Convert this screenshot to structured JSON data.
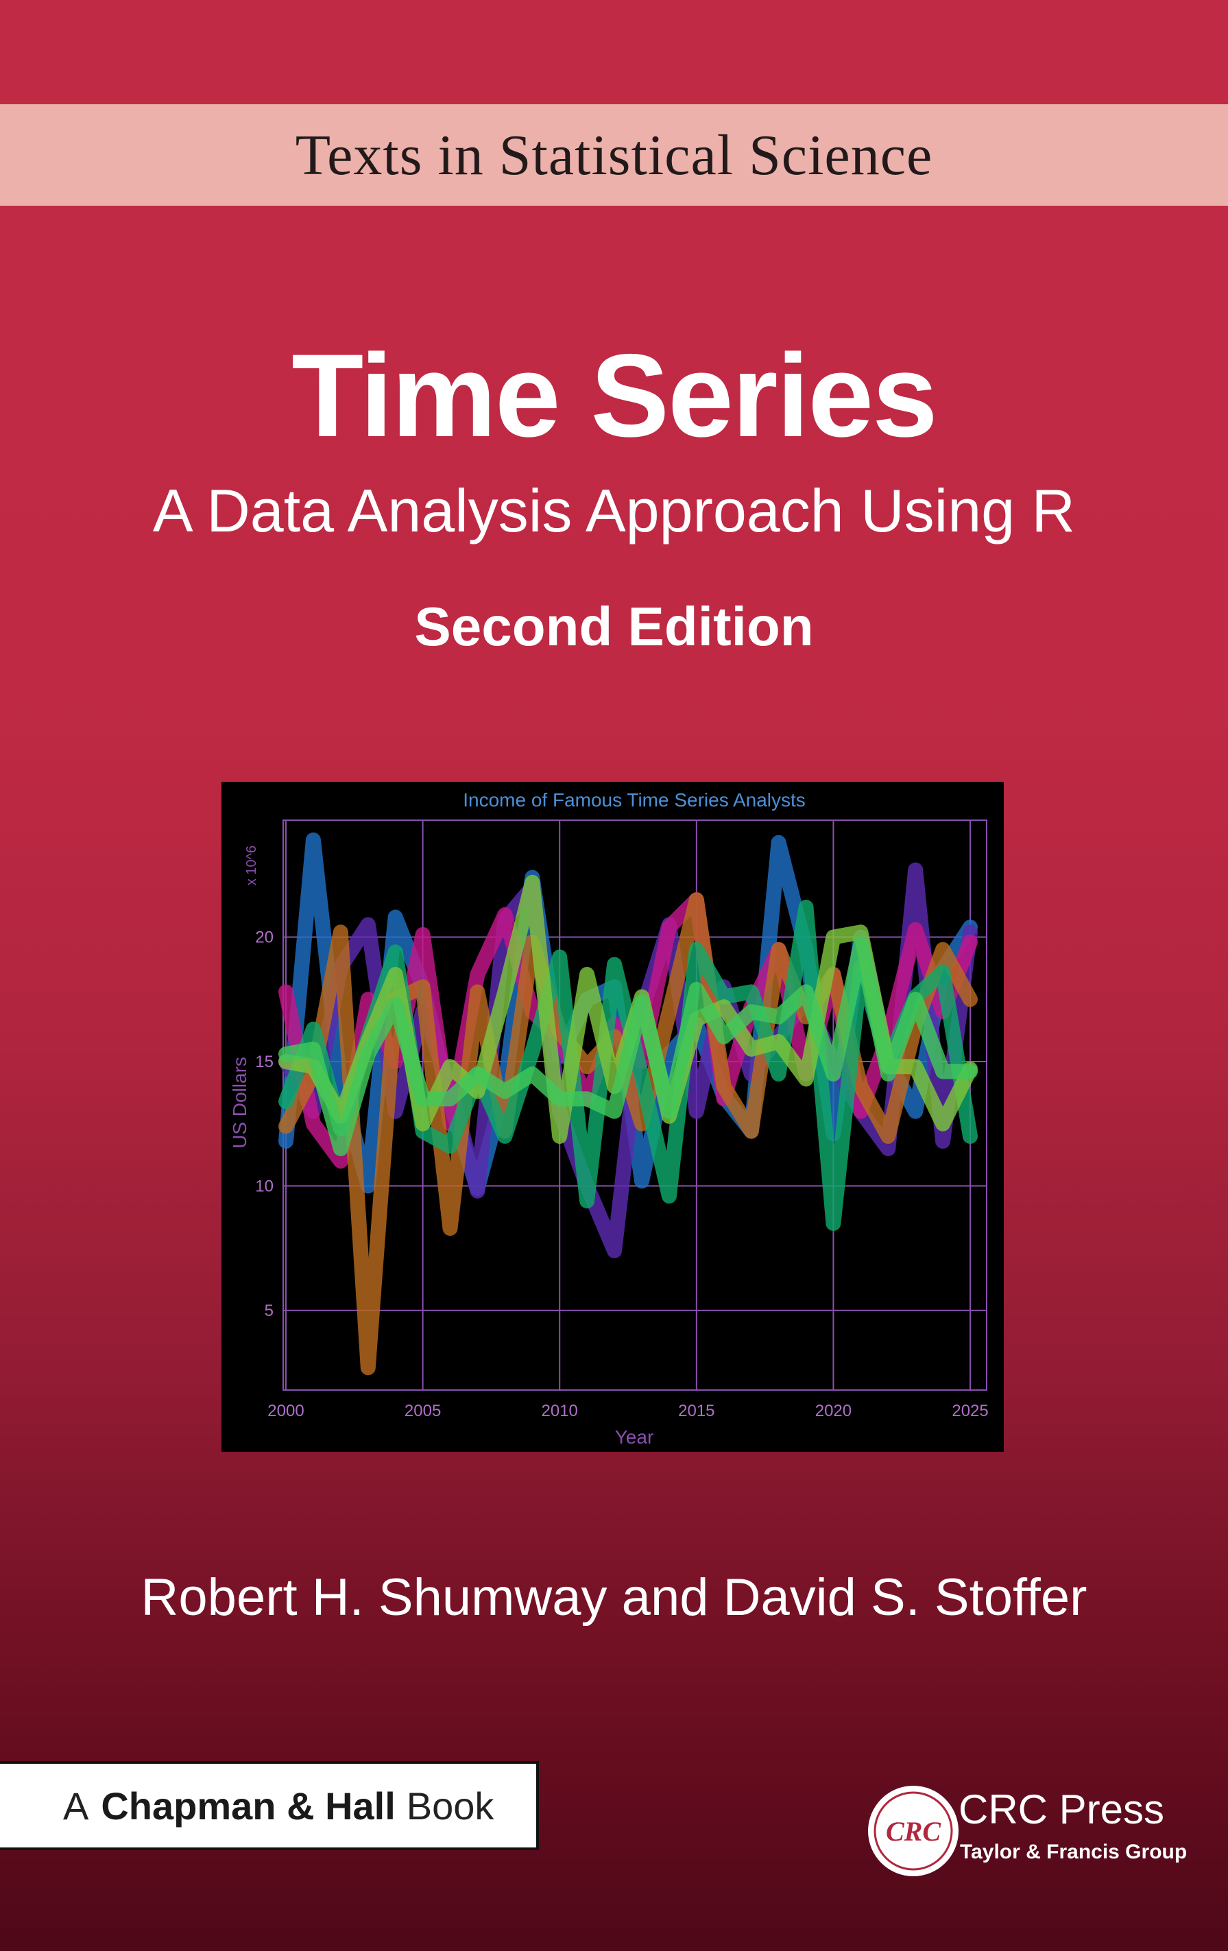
{
  "series_band": {
    "text": "Texts in Statistical Science"
  },
  "book": {
    "title": "Time Series",
    "subtitle": "A Data Analysis Approach Using R",
    "edition": "Second Edition",
    "authors": "Robert H. Shumway and David S. Stoffer"
  },
  "imprint": {
    "a": "A",
    "name": "Chapman & Hall",
    "book": "Book"
  },
  "publisher": {
    "logo_text": "CRC",
    "name": "CRC Press",
    "group": "Taylor & Francis Group"
  },
  "colors": {
    "background": "#bf2943",
    "band": "#ecb1aa",
    "chart_bg": "#000000",
    "chart_grid": "#8a4fb0",
    "chart_text": "#b06fc8",
    "chart_title": "#4a90d9"
  },
  "chart_data": {
    "type": "line",
    "title": "Income of Famous Time Series Analysts",
    "xlabel": "Year",
    "ylabel": "US Dollars",
    "y_multiplier": "x 10^6",
    "xlim": [
      1999.9,
      2025.6
    ],
    "ylim": [
      1.8,
      24.7
    ],
    "xticks": [
      2000,
      2005,
      2010,
      2015,
      2020,
      2025
    ],
    "yticks": [
      5,
      10,
      15,
      20
    ],
    "grid": true,
    "x": [
      2000,
      2001,
      2002,
      2003,
      2004,
      2005,
      2006,
      2007,
      2008,
      2009,
      2010,
      2011,
      2012,
      2013,
      2014,
      2015,
      2016,
      2017,
      2018,
      2019,
      2020,
      2021,
      2022,
      2023,
      2024,
      2025
    ],
    "series": [
      {
        "color": "#1f6fc5",
        "values": [
          11.8,
          23.9,
          14.0,
          10.0,
          20.8,
          18.0,
          13.3,
          9.9,
          14.0,
          22.4,
          15.2,
          17.5,
          18.0,
          10.2,
          15.3,
          16.5,
          13.6,
          12.2,
          23.8,
          19.5,
          12.1,
          20.0,
          15.0,
          13.0,
          18.7,
          20.4
        ]
      },
      {
        "color": "#5b2bb0",
        "values": [
          15.0,
          13.0,
          18.8,
          20.5,
          13.0,
          17.0,
          14.0,
          9.8,
          20.7,
          22.0,
          13.0,
          10.0,
          7.4,
          17.0,
          20.5,
          13.0,
          18.0,
          14.5,
          16.0,
          17.5,
          15.0,
          13.0,
          11.5,
          22.7,
          11.8,
          20.2
        ]
      },
      {
        "color": "#c4168a",
        "values": [
          17.8,
          12.5,
          11.0,
          17.5,
          15.0,
          20.1,
          12.5,
          18.5,
          20.9,
          17.0,
          16.0,
          13.5,
          16.5,
          15.0,
          20.4,
          21.5,
          13.5,
          17.2,
          19.5,
          14.5,
          18.5,
          13.0,
          16.0,
          20.3,
          17.0,
          19.8
        ]
      },
      {
        "color": "#b86a1e",
        "values": [
          12.4,
          14.5,
          20.2,
          2.7,
          17.5,
          18.0,
          8.3,
          17.8,
          12.2,
          19.8,
          16.2,
          14.8,
          16.0,
          12.5,
          17.0,
          21.5,
          14.0,
          12.2,
          19.5,
          16.8,
          18.5,
          14.0,
          12.0,
          16.5,
          19.5,
          17.5
        ]
      },
      {
        "color": "#0fa86a",
        "values": [
          13.4,
          16.3,
          12.3,
          16.0,
          19.4,
          12.2,
          11.6,
          14.5,
          12.0,
          15.4,
          19.2,
          9.4,
          18.9,
          14.4,
          9.6,
          19.5,
          17.6,
          17.8,
          14.5,
          21.2,
          8.5,
          18.8,
          15.0,
          17.6,
          18.6,
          12.0
        ]
      },
      {
        "color": "#7cc43c",
        "values": [
          15.0,
          14.8,
          12.8,
          15.8,
          18.5,
          12.5,
          14.8,
          13.8,
          17.8,
          22.2,
          12.0,
          18.5,
          14.0,
          17.6,
          12.8,
          16.7,
          17.2,
          15.5,
          15.8,
          14.3,
          20.0,
          20.2,
          14.8,
          14.8,
          12.5,
          14.7
        ]
      },
      {
        "color": "#3fc85a",
        "values": [
          15.3,
          15.5,
          11.5,
          15.3,
          17.3,
          13.5,
          13.5,
          14.5,
          13.8,
          14.5,
          13.5,
          13.5,
          13.0,
          17.4,
          13.0,
          17.9,
          16.0,
          17.0,
          16.8,
          17.8,
          14.5,
          19.7,
          14.5,
          17.5,
          14.6,
          14.6
        ]
      }
    ]
  }
}
